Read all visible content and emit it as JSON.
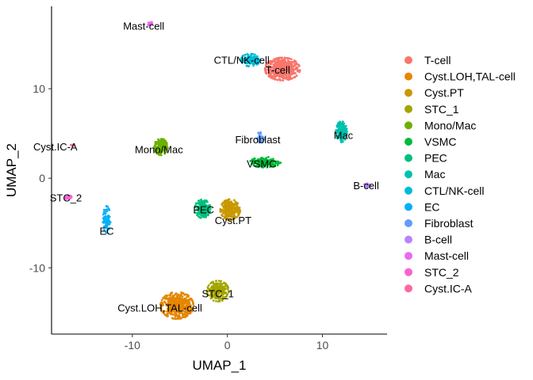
{
  "chart_data": {
    "type": "scatter",
    "xlabel": "UMAP_1",
    "ylabel": "UMAP_2",
    "xlim": [
      -18.5,
      16.8
    ],
    "ylim": [
      -17.4,
      19.2
    ],
    "x_ticks": [
      -10,
      0,
      10
    ],
    "y_ticks": [
      -10,
      0,
      10
    ],
    "grid": false,
    "legend_position": "right",
    "series": [
      {
        "name": "T-cell",
        "color": "#F8766D",
        "center": [
          5.8,
          12.2
        ],
        "spread": [
          1.6,
          1.1
        ],
        "n": 520,
        "label": "T-cell",
        "label_pos": [
          5.3,
          12.0
        ]
      },
      {
        "name": "Cyst.LOH,TAL-cell",
        "color": "#E58700",
        "center": [
          -5.3,
          -14.2
        ],
        "spread": [
          1.5,
          1.3
        ],
        "n": 480,
        "label": "Cyst.LOH,TAL-cell",
        "label_pos": [
          -7.1,
          -14.6
        ]
      },
      {
        "name": "Cyst.PT",
        "color": "#C99800",
        "center": [
          0.3,
          -3.5
        ],
        "spread": [
          0.9,
          1.0
        ],
        "n": 240,
        "label": "Cyst.PT",
        "label_pos": [
          0.6,
          -4.8
        ]
      },
      {
        "name": "STC_1",
        "color": "#A3A500",
        "center": [
          -1.0,
          -12.6
        ],
        "spread": [
          1.0,
          1.0
        ],
        "n": 230,
        "label": "STC_1",
        "label_pos": [
          -1.0,
          -13.0
        ]
      },
      {
        "name": "Mono/Mac",
        "color": "#6BB100",
        "center": [
          -7.0,
          3.5
        ],
        "spread": [
          0.6,
          0.8
        ],
        "n": 180,
        "label": "Mono/Mac",
        "label_pos": [
          -7.2,
          3.1
        ]
      },
      {
        "name": "VSMC",
        "color": "#00BA38",
        "center": [
          4.0,
          1.8
        ],
        "spread": [
          1.4,
          0.5
        ],
        "n": 200,
        "label": "VSMC",
        "label_pos": [
          3.6,
          1.5
        ]
      },
      {
        "name": "PEC",
        "color": "#00BF7D",
        "center": [
          -2.6,
          -3.4
        ],
        "spread": [
          0.7,
          0.9
        ],
        "n": 170,
        "label": "PEC",
        "label_pos": [
          -2.5,
          -3.6
        ]
      },
      {
        "name": "Mac",
        "color": "#00C0AF",
        "center": [
          12.0,
          5.2
        ],
        "spread": [
          0.5,
          1.0
        ],
        "n": 200,
        "label": "Mac",
        "label_pos": [
          12.2,
          4.7
        ]
      },
      {
        "name": "CTL/NK-cell",
        "color": "#00BCD8",
        "center": [
          2.4,
          13.2
        ],
        "spread": [
          0.9,
          0.6
        ],
        "n": 140,
        "label": "CTL/NK-cell",
        "label_pos": [
          1.5,
          13.1
        ]
      },
      {
        "name": "EC",
        "color": "#00B0F6",
        "center": [
          -12.7,
          -4.6
        ],
        "spread": [
          0.35,
          1.3
        ],
        "n": 90,
        "label": "EC",
        "label_pos": [
          -12.7,
          -6.0
        ]
      },
      {
        "name": "Fibroblast",
        "color": "#619CFF",
        "center": [
          3.5,
          4.5
        ],
        "spread": [
          0.4,
          0.6
        ],
        "n": 30,
        "label": "Fibroblast",
        "label_pos": [
          3.2,
          4.2
        ]
      },
      {
        "name": "B-cell",
        "color": "#B983FF",
        "center": [
          14.8,
          -0.8
        ],
        "spread": [
          0.4,
          0.2
        ],
        "n": 25,
        "label": "B-cell",
        "label_pos": [
          14.6,
          -0.9
        ]
      },
      {
        "name": "Mast-cell",
        "color": "#E76BF3",
        "center": [
          -8.1,
          17.2
        ],
        "spread": [
          0.25,
          0.25
        ],
        "n": 20,
        "label": "Mast-cell",
        "label_pos": [
          -8.8,
          16.9
        ]
      },
      {
        "name": "STC_2",
        "color": "#FD61D1",
        "center": [
          -16.8,
          -2.1
        ],
        "spread": [
          0.35,
          0.2
        ],
        "n": 25,
        "label": "STC_2",
        "label_pos": [
          -17.0,
          -2.3
        ]
      },
      {
        "name": "Cyst.IC-A",
        "color": "#FF67A4",
        "center": [
          -16.3,
          3.7
        ],
        "spread": [
          0.15,
          0.1
        ],
        "n": 6,
        "label": "Cyst.IC-A",
        "label_pos": [
          -18.1,
          3.4
        ]
      }
    ]
  }
}
